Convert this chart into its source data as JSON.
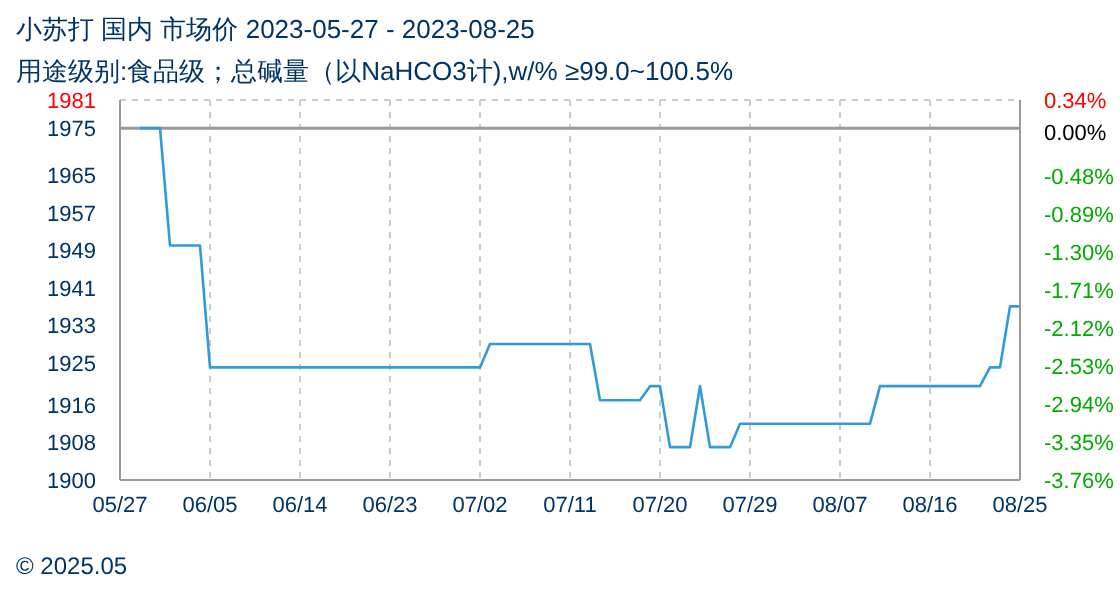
{
  "chart_data": {
    "type": "line",
    "title": "小苏打 国内 市场价 2023-05-27 - 2023-08-25",
    "subtitle": "用途级别:食品级；总碱量（以NaHCO3计),w/% ≥99.0~100.5%",
    "annotations": [
      "© 2025.05"
    ],
    "x": [
      "2023-05-29",
      "2023-05-31",
      "2023-06-01",
      "2023-06-04",
      "2023-06-05",
      "2023-07-02",
      "2023-07-03",
      "2023-07-13",
      "2023-07-14",
      "2023-07-18",
      "2023-07-19",
      "2023-07-20",
      "2023-07-21",
      "2023-07-23",
      "2023-07-24",
      "2023-07-25",
      "2023-07-27",
      "2023-07-28",
      "2023-08-10",
      "2023-08-11",
      "2023-08-21",
      "2023-08-22",
      "2023-08-23",
      "2023-08-24",
      "2023-08-25"
    ],
    "series": [
      {
        "color": "#3399dd",
        "values": [
          1975,
          1975,
          1950,
          1950,
          1924,
          1924,
          1929,
          1929,
          1917,
          1917,
          1920,
          1920,
          1907,
          1907,
          1920,
          1907,
          1907,
          1912,
          1912,
          1920,
          1920,
          1924,
          1924,
          1937,
          1937
        ]
      }
    ],
    "xlim": [
      "2023-05-27",
      "2023-08-25"
    ],
    "xticks": [
      {
        "value": "2023-05-27",
        "label": "05/27"
      },
      {
        "value": "2023-06-05",
        "label": "06/05"
      },
      {
        "value": "2023-06-14",
        "label": "06/14"
      },
      {
        "value": "2023-06-23",
        "label": "06/23"
      },
      {
        "value": "2023-07-02",
        "label": "07/02"
      },
      {
        "value": "2023-07-11",
        "label": "07/11"
      },
      {
        "value": "2023-07-20",
        "label": "07/20"
      },
      {
        "value": "2023-07-29",
        "label": "07/29"
      },
      {
        "value": "2023-08-07",
        "label": "08/07"
      },
      {
        "value": "2023-08-16",
        "label": "08/16"
      },
      {
        "value": "2023-08-25",
        "label": "08/25"
      }
    ],
    "ylim": [
      1900,
      1981
    ],
    "yticks": [
      1900,
      1908,
      1916,
      1925,
      1933,
      1941,
      1949,
      1957,
      1965,
      1975,
      1981
    ],
    "y2lim": [
      -3.76,
      0.34
    ],
    "y2ticks": [
      {
        "value": -3.76,
        "label": "-3.76%"
      },
      {
        "value": -3.35,
        "label": "-3.35%"
      },
      {
        "value": -2.94,
        "label": "-2.94%"
      },
      {
        "value": -2.53,
        "label": "-2.53%"
      },
      {
        "value": -2.12,
        "label": "-2.12%"
      },
      {
        "value": -1.71,
        "label": "-1.71%"
      },
      {
        "value": -1.3,
        "label": "-1.30%"
      },
      {
        "value": -0.89,
        "label": "-0.89%"
      },
      {
        "value": -0.48,
        "label": "-0.48%"
      },
      {
        "value": 0,
        "label": "0.00%"
      },
      {
        "value": 0.34,
        "label": "0.34%"
      }
    ],
    "ref_lines": [
      {
        "axis": "y",
        "value": 1975,
        "color": "#999999"
      }
    ],
    "grid": true,
    "marker": "none",
    "line_style": "solid"
  }
}
